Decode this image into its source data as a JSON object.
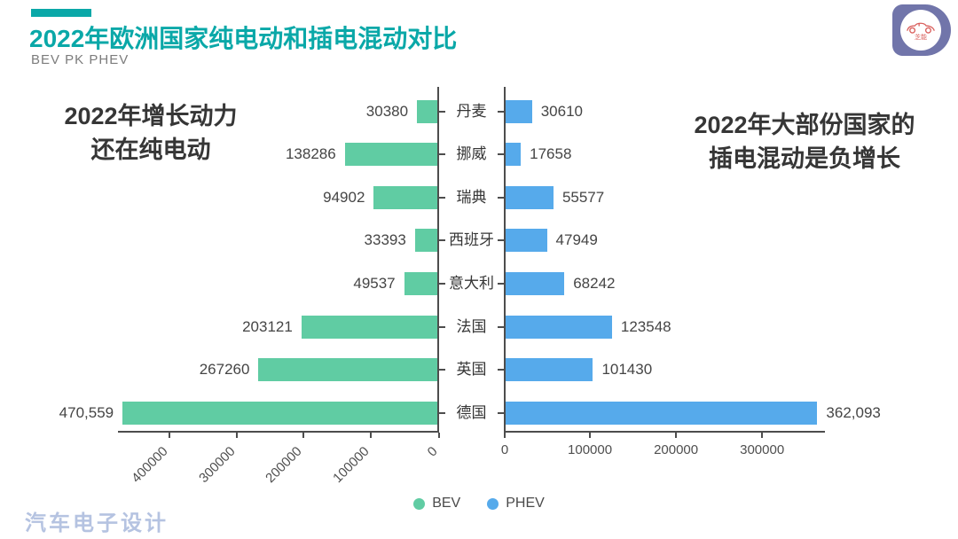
{
  "header": {
    "title": "2022年欧洲国家纯电动和插电混动对比",
    "subtitle": "BEV PK PHEV",
    "accent_color": "#0AA8A8"
  },
  "logo": {
    "text": "芝能"
  },
  "annotations": {
    "left": {
      "line1": "2022年增长动力",
      "line2": "还在纯电动"
    },
    "right": {
      "line1": "2022年大部份国家的",
      "line2": "插电混动是负增长"
    }
  },
  "chart_data": {
    "type": "bar",
    "variant": "diverging-horizontal-tornado",
    "title": "2022年欧洲国家纯电动和插电混动对比",
    "categories": [
      "丹麦",
      "挪威",
      "瑞典",
      "西班牙",
      "意大利",
      "法国",
      "英国",
      "德国"
    ],
    "series": [
      {
        "name": "BEV",
        "side": "left",
        "color": "#60CCA3",
        "values": [
          30380,
          138286,
          94902,
          33393,
          49537,
          203121,
          267260,
          470559
        ],
        "value_labels": [
          "30380",
          "138286",
          "94902",
          "33393",
          "49537",
          "203121",
          "267260",
          "470,559"
        ],
        "axis_ticks": [
          400000,
          300000,
          200000,
          100000,
          0
        ],
        "axis_tick_labels": [
          "400000",
          "300000",
          "200000",
          "100000",
          "0"
        ],
        "axis_max": 480000
      },
      {
        "name": "PHEV",
        "side": "right",
        "color": "#56AAEB",
        "values": [
          30610,
          17658,
          55577,
          47949,
          68242,
          123548,
          101430,
          362093
        ],
        "value_labels": [
          "30610",
          "17658",
          "55577",
          "47949",
          "68242",
          "123548",
          "101430",
          "362,093"
        ],
        "axis_ticks": [
          0,
          100000,
          200000,
          300000
        ],
        "axis_tick_labels": [
          "0",
          "100000",
          "200000",
          "300000"
        ],
        "axis_max": 373000
      }
    ],
    "legend": [
      {
        "label": "BEV",
        "color": "#60CCA3"
      },
      {
        "label": "PHEV",
        "color": "#56AAEB"
      }
    ],
    "grid": false,
    "legend_position": "bottom-center"
  },
  "watermark": "汽车电子设计"
}
